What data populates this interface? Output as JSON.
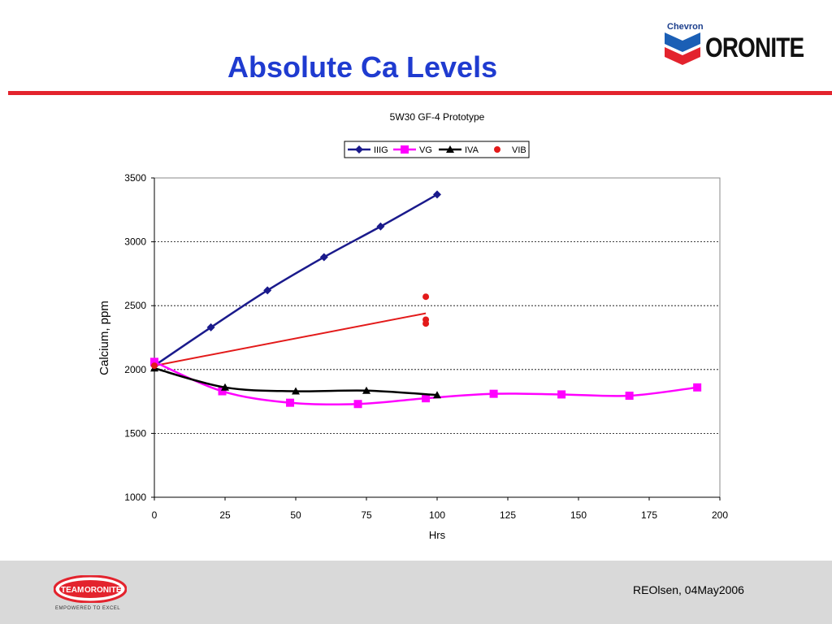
{
  "slide": {
    "title": "Absolute Ca Levels",
    "brand_small": "Chevron",
    "brand_wordmark": "ORONITE",
    "footer_logo_text_left": "TEAM",
    "footer_logo_text_right": "ORONITE",
    "footer_tagline": "EMPOWERED TO EXCEL",
    "footer_credit": "REOlsen, 04May2006",
    "colors": {
      "title": "#1f3bd0",
      "rule": "#e3232d",
      "footer_bg": "#d9d9d9"
    }
  },
  "chart_data": {
    "type": "line",
    "title": "5W30 GF-4 Prototype",
    "xlabel": "Hrs",
    "ylabel": "Calcium, ppm",
    "xlim": [
      0,
      200
    ],
    "ylim": [
      1000,
      3500
    ],
    "xticks": [
      0,
      25,
      50,
      75,
      100,
      125,
      150,
      175,
      200
    ],
    "yticks": [
      1000,
      1500,
      2000,
      2500,
      3000,
      3500
    ],
    "grid": "horizontal dashed",
    "legend": "top-center",
    "series": [
      {
        "name": "IIIG",
        "color": "#1a1a8c",
        "marker": "diamond",
        "line": true,
        "x": [
          0,
          20,
          40,
          60,
          80,
          100
        ],
        "y": [
          2030,
          2330,
          2620,
          2880,
          3120,
          3370
        ]
      },
      {
        "name": "VG",
        "color": "#ff00ff",
        "marker": "square",
        "line": true,
        "x": [
          0,
          24,
          48,
          72,
          96,
          120,
          144,
          168,
          192
        ],
        "y": [
          2060,
          1830,
          1740,
          1730,
          1775,
          1810,
          1805,
          1795,
          1860
        ]
      },
      {
        "name": "IVA",
        "color": "#000000",
        "marker": "triangle",
        "line": true,
        "x": [
          0,
          25,
          50,
          75,
          100
        ],
        "y": [
          2010,
          1860,
          1830,
          1835,
          1800
        ]
      },
      {
        "name": "VIB",
        "color": "#e31a1a",
        "marker": "circle",
        "line": false,
        "x": [
          0,
          96,
          96,
          96
        ],
        "y": [
          2030,
          2570,
          2390,
          2360
        ]
      }
    ],
    "trendline": {
      "series": "VIB",
      "color": "#e31a1a",
      "x": [
        0,
        96
      ],
      "y": [
        2030,
        2440
      ]
    }
  }
}
